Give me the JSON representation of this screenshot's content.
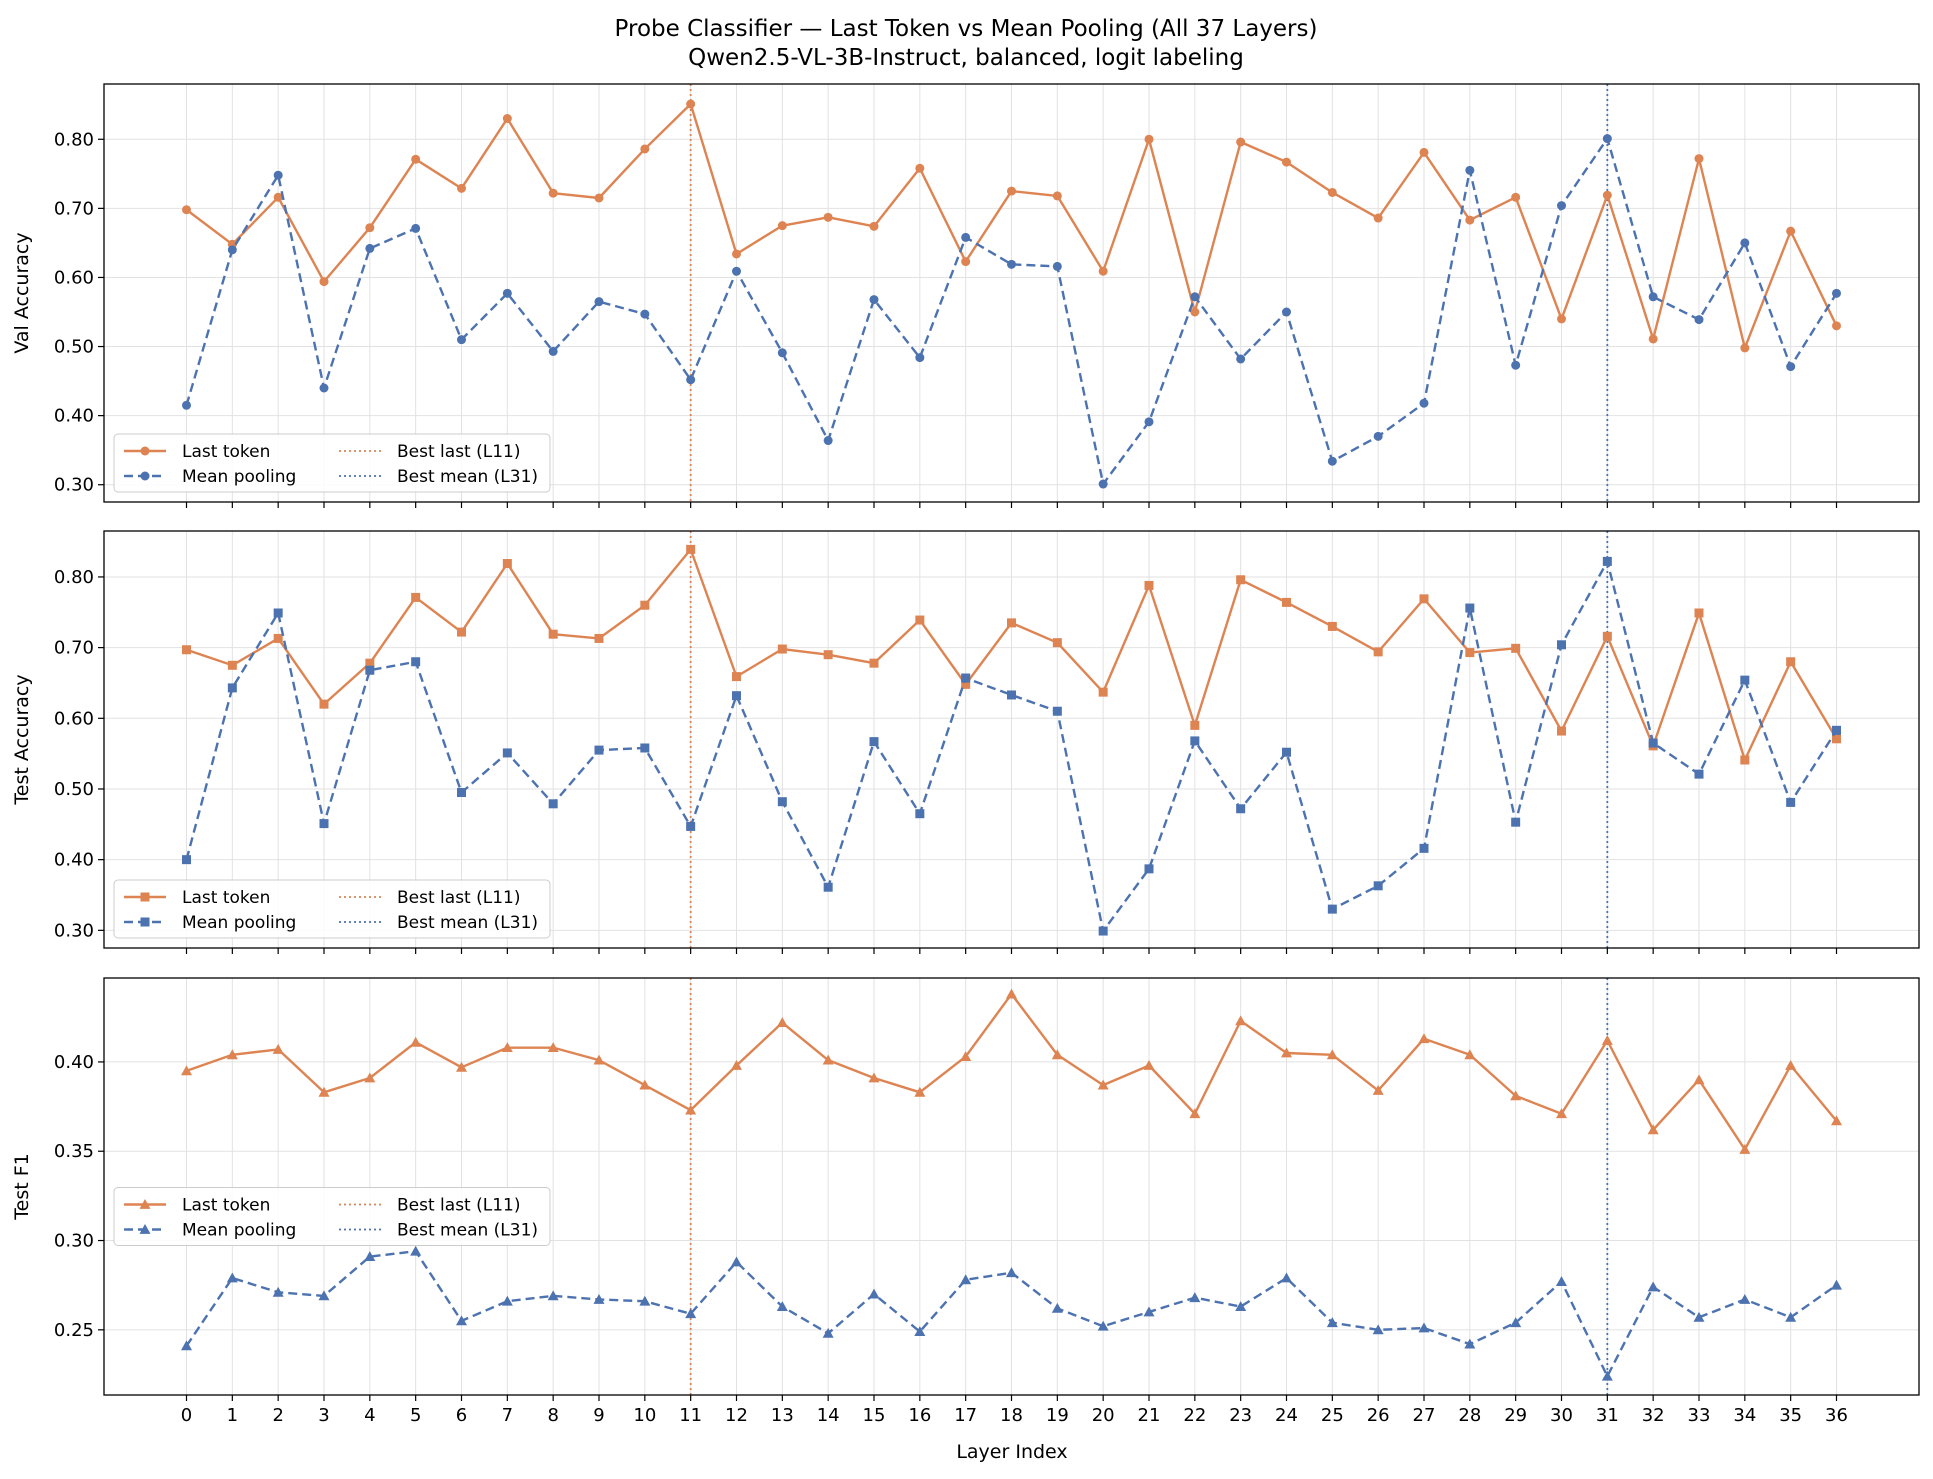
{
  "figure": {
    "title_line1": "Probe Classifier — Last Token vs Mean Pooling (All 37 Layers)",
    "title_line2": "Qwen2.5-VL-3B-Instruct, balanced, logit labeling",
    "xlabel": "Layer Index",
    "colors": {
      "last": "#dd8452",
      "mean": "#4c72b0"
    }
  },
  "chart_data": [
    {
      "type": "line",
      "ylabel": "Val Accuracy",
      "marker": "circle",
      "ylim": [
        0.275,
        0.88
      ],
      "yticks": [
        0.3,
        0.4,
        0.5,
        0.6,
        0.7,
        0.8
      ],
      "yticklabels": [
        "0.30",
        "0.40",
        "0.50",
        "0.60",
        "0.70",
        "0.80"
      ],
      "x": [
        0,
        1,
        2,
        3,
        4,
        5,
        6,
        7,
        8,
        9,
        10,
        11,
        12,
        13,
        14,
        15,
        16,
        17,
        18,
        19,
        20,
        21,
        22,
        23,
        24,
        25,
        26,
        27,
        28,
        29,
        30,
        31,
        32,
        33,
        34,
        35,
        36
      ],
      "series": [
        {
          "name": "Last token",
          "values": [
            0.698,
            0.648,
            0.716,
            0.594,
            0.672,
            0.771,
            0.729,
            0.83,
            0.722,
            0.715,
            0.786,
            0.851,
            0.634,
            0.675,
            0.687,
            0.674,
            0.758,
            0.623,
            0.725,
            0.718,
            0.609,
            0.8,
            0.55,
            0.796,
            0.767,
            0.723,
            0.686,
            0.781,
            0.683,
            0.716,
            0.54,
            0.719,
            0.511,
            0.772,
            0.498,
            0.667,
            0.53
          ]
        },
        {
          "name": "Mean pooling",
          "values": [
            0.415,
            0.64,
            0.748,
            0.44,
            0.642,
            0.671,
            0.51,
            0.577,
            0.493,
            0.565,
            0.547,
            0.452,
            0.609,
            0.491,
            0.364,
            0.568,
            0.484,
            0.658,
            0.619,
            0.616,
            0.301,
            0.391,
            0.572,
            0.482,
            0.55,
            0.334,
            0.37,
            0.418,
            0.755,
            0.473,
            0.704,
            0.801,
            0.572,
            0.539,
            0.65,
            0.471,
            0.577
          ]
        }
      ],
      "vlines": [
        {
          "name": "Best last (L11)",
          "x": 11
        },
        {
          "name": "Best mean (L31)",
          "x": 31
        }
      ],
      "legend": "lower-left",
      "grid": true
    },
    {
      "type": "line",
      "ylabel": "Test Accuracy",
      "marker": "square",
      "ylim": [
        0.275,
        0.865
      ],
      "yticks": [
        0.3,
        0.4,
        0.5,
        0.6,
        0.7,
        0.8
      ],
      "yticklabels": [
        "0.30",
        "0.40",
        "0.50",
        "0.60",
        "0.70",
        "0.80"
      ],
      "x": [
        0,
        1,
        2,
        3,
        4,
        5,
        6,
        7,
        8,
        9,
        10,
        11,
        12,
        13,
        14,
        15,
        16,
        17,
        18,
        19,
        20,
        21,
        22,
        23,
        24,
        25,
        26,
        27,
        28,
        29,
        30,
        31,
        32,
        33,
        34,
        35,
        36
      ],
      "series": [
        {
          "name": "Last token",
          "values": [
            0.697,
            0.675,
            0.713,
            0.62,
            0.678,
            0.771,
            0.722,
            0.819,
            0.719,
            0.713,
            0.76,
            0.839,
            0.659,
            0.698,
            0.69,
            0.678,
            0.739,
            0.648,
            0.735,
            0.707,
            0.637,
            0.788,
            0.59,
            0.796,
            0.764,
            0.73,
            0.694,
            0.769,
            0.693,
            0.699,
            0.582,
            0.716,
            0.561,
            0.749,
            0.541,
            0.68,
            0.571
          ]
        },
        {
          "name": "Mean pooling",
          "values": [
            0.4,
            0.643,
            0.749,
            0.451,
            0.668,
            0.68,
            0.495,
            0.551,
            0.479,
            0.555,
            0.558,
            0.447,
            0.632,
            0.482,
            0.361,
            0.567,
            0.465,
            0.657,
            0.633,
            0.61,
            0.299,
            0.387,
            0.568,
            0.472,
            0.552,
            0.33,
            0.363,
            0.416,
            0.756,
            0.453,
            0.704,
            0.822,
            0.565,
            0.521,
            0.654,
            0.481,
            0.583
          ]
        }
      ],
      "vlines": [
        {
          "name": "Best last (L11)",
          "x": 11
        },
        {
          "name": "Best mean (L31)",
          "x": 31
        }
      ],
      "legend": "lower-left",
      "grid": true
    },
    {
      "type": "line",
      "ylabel": "Test F1",
      "marker": "triangle",
      "ylim": [
        0.2135,
        0.447
      ],
      "yticks": [
        0.25,
        0.3,
        0.35,
        0.4
      ],
      "yticklabels": [
        "0.25",
        "0.30",
        "0.35",
        "0.40"
      ],
      "x": [
        0,
        1,
        2,
        3,
        4,
        5,
        6,
        7,
        8,
        9,
        10,
        11,
        12,
        13,
        14,
        15,
        16,
        17,
        18,
        19,
        20,
        21,
        22,
        23,
        24,
        25,
        26,
        27,
        28,
        29,
        30,
        31,
        32,
        33,
        34,
        35,
        36
      ],
      "series": [
        {
          "name": "Last token",
          "values": [
            0.395,
            0.404,
            0.407,
            0.383,
            0.391,
            0.411,
            0.397,
            0.408,
            0.408,
            0.401,
            0.387,
            0.373,
            0.398,
            0.422,
            0.401,
            0.391,
            0.383,
            0.403,
            0.438,
            0.404,
            0.387,
            0.398,
            0.371,
            0.423,
            0.405,
            0.404,
            0.384,
            0.413,
            0.404,
            0.381,
            0.371,
            0.412,
            0.362,
            0.39,
            0.351,
            0.398,
            0.367
          ]
        },
        {
          "name": "Mean pooling",
          "values": [
            0.241,
            0.279,
            0.271,
            0.269,
            0.291,
            0.294,
            0.255,
            0.266,
            0.269,
            0.267,
            0.266,
            0.259,
            0.288,
            0.263,
            0.248,
            0.27,
            0.249,
            0.278,
            0.282,
            0.262,
            0.252,
            0.26,
            0.268,
            0.263,
            0.279,
            0.254,
            0.25,
            0.251,
            0.242,
            0.254,
            0.277,
            0.224,
            0.274,
            0.257,
            0.267,
            0.257,
            0.275
          ]
        }
      ],
      "vlines": [
        {
          "name": "Best last (L11)",
          "x": 11
        },
        {
          "name": "Best mean (L31)",
          "x": 31
        }
      ],
      "legend": "center-left",
      "grid": true
    }
  ]
}
